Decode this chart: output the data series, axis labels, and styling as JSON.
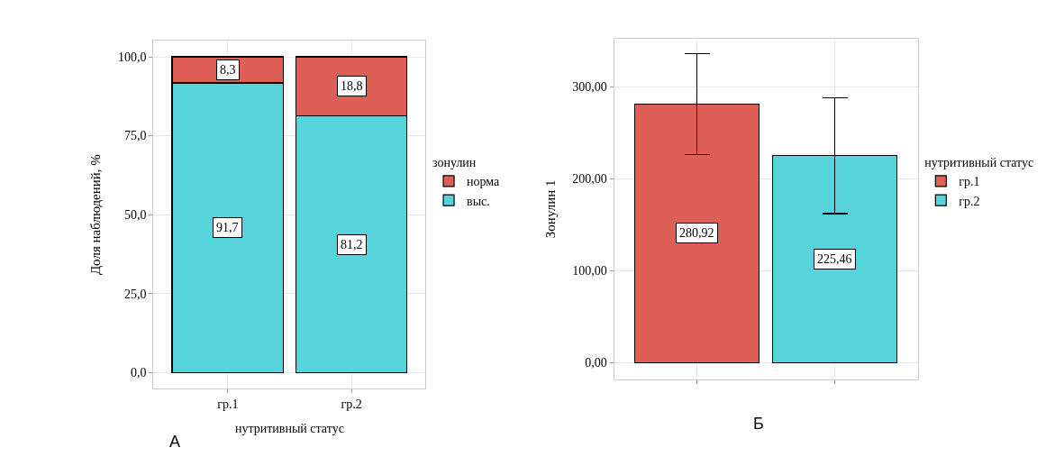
{
  "chart_data": [
    {
      "type": "bar",
      "stacked": true,
      "categories": [
        "гр.1",
        "гр.2"
      ],
      "xlabel": "нутритивный статус",
      "ylabel": "Доля наблюдений, %",
      "legend_title": "зонулин",
      "legend": "right",
      "grid": true,
      "series": [
        {
          "name": "выс.",
          "color": "#56d3db",
          "values": [
            91.7,
            81.2
          ],
          "value_labels": [
            "91,7",
            "81,2"
          ]
        },
        {
          "name": "норма",
          "color": "#de5f55",
          "values": [
            8.3,
            18.8
          ],
          "value_labels": [
            "8,3",
            "18,8"
          ]
        }
      ],
      "ylim": [
        -5,
        105
      ],
      "yticks": [
        {
          "value": 0,
          "label": "0,0"
        },
        {
          "value": 25,
          "label": "25,0"
        },
        {
          "value": 50,
          "label": "50,0"
        },
        {
          "value": 75,
          "label": "75,0"
        },
        {
          "value": 100,
          "label": "100,0"
        }
      ],
      "annotations": [
        "А"
      ]
    },
    {
      "type": "bar",
      "categories": [
        null,
        null
      ],
      "ylabel": "Зонулин 1",
      "legend_title": "нутритивный статус",
      "legend": "right",
      "grid": true,
      "series": [
        {
          "name": "гр.1",
          "color": "#de5f55",
          "values": [
            280.92,
            null
          ],
          "value_labels": [
            "280,92",
            null
          ],
          "errors": [
            [
              226,
              336
            ],
            null
          ]
        },
        {
          "name": "гр.2",
          "color": "#56d3db",
          "values": [
            null,
            225.46
          ],
          "value_labels": [
            null,
            "225,46"
          ],
          "errors": [
            null,
            [
              162,
              288
            ]
          ]
        }
      ],
      "ylim": [
        -18,
        352
      ],
      "yticks": [
        {
          "value": 0,
          "label": "0,00"
        },
        {
          "value": 100,
          "label": "100,00"
        },
        {
          "value": 200,
          "label": "200,00"
        },
        {
          "value": 300,
          "label": "300,00"
        }
      ],
      "annotations": [
        "Б"
      ]
    }
  ]
}
